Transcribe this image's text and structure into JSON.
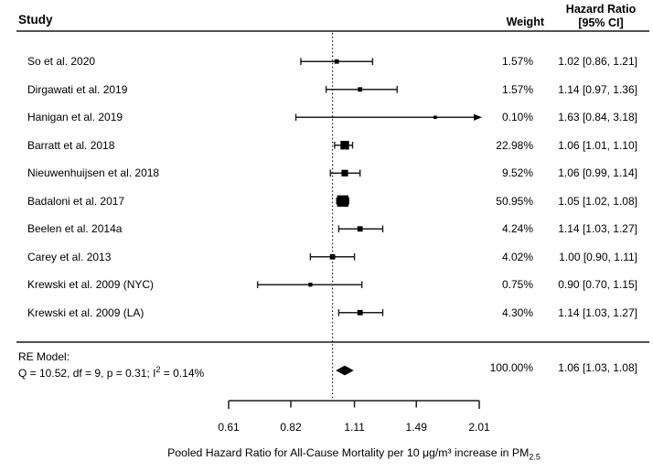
{
  "header": {
    "study": "Study",
    "weight": "Weight",
    "hr_line1": "Hazard Ratio",
    "hr_line2": "[95% CI]"
  },
  "colors": {
    "text": "#000000",
    "marker": "#000000",
    "ci_line": "#1c1c1c",
    "rule_line": "#3a3a3a",
    "background": "#ffffff"
  },
  "chart_data": {
    "type": "scatter",
    "subtype": "forest-plot",
    "x_scale": "log",
    "grid": false,
    "axis": {
      "range": [
        0.61,
        2.01
      ],
      "ticks": [
        0.61,
        0.82,
        1.11,
        1.49,
        2.01
      ],
      "tick_labels": [
        "0.61",
        "0.82",
        "1.11",
        "1.49",
        "2.01"
      ],
      "ref_line": 1.0
    },
    "xlabel_prefix": "Pooled Hazard Ratio for All-Cause Mortality per 10 μg/m³ increase in PM",
    "xlabel_sub": "2.5",
    "studies": [
      {
        "name": "So et al. 2020",
        "weight_label": "1.57%",
        "weight_pct": 1.57,
        "hr_label": "1.02 [0.86, 1.21]",
        "est": 1.02,
        "lo": 0.86,
        "hi": 1.21,
        "clipped": false
      },
      {
        "name": "Dirgawati et al. 2019",
        "weight_label": "1.57%",
        "weight_pct": 1.57,
        "hr_label": "1.14 [0.97, 1.36]",
        "est": 1.14,
        "lo": 0.97,
        "hi": 1.36,
        "clipped": false
      },
      {
        "name": "Hanigan et al. 2019",
        "weight_label": "0.10%",
        "weight_pct": 0.1,
        "hr_label": "1.63 [0.84, 3.18]",
        "est": 1.63,
        "lo": 0.84,
        "hi": 3.18,
        "clipped": true
      },
      {
        "name": "Barratt et al. 2018",
        "weight_label": "22.98%",
        "weight_pct": 22.98,
        "hr_label": "1.06 [1.01, 1.10]",
        "est": 1.06,
        "lo": 1.01,
        "hi": 1.1,
        "clipped": false
      },
      {
        "name": "Nieuwenhuijsen et al. 2018",
        "weight_label": "9.52%",
        "weight_pct": 9.52,
        "hr_label": "1.06 [0.99, 1.14]",
        "est": 1.06,
        "lo": 0.99,
        "hi": 1.14,
        "clipped": false
      },
      {
        "name": "Badaloni et al. 2017",
        "weight_label": "50.95%",
        "weight_pct": 50.95,
        "hr_label": "1.05 [1.02, 1.08]",
        "est": 1.05,
        "lo": 1.02,
        "hi": 1.08,
        "clipped": false
      },
      {
        "name": "Beelen et al. 2014a",
        "weight_label": "4.24%",
        "weight_pct": 4.24,
        "hr_label": "1.14 [1.03, 1.27]",
        "est": 1.14,
        "lo": 1.03,
        "hi": 1.27,
        "clipped": false
      },
      {
        "name": "Carey et al. 2013",
        "weight_label": "4.02%",
        "weight_pct": 4.02,
        "hr_label": "1.00 [0.90, 1.11]",
        "est": 1.0,
        "lo": 0.9,
        "hi": 1.11,
        "clipped": false
      },
      {
        "name": "Krewski et al. 2009 (NYC)",
        "weight_label": "0.75%",
        "weight_pct": 0.75,
        "hr_label": "0.90 [0.70, 1.15]",
        "est": 0.9,
        "lo": 0.7,
        "hi": 1.15,
        "clipped": false
      },
      {
        "name": "Krewski et al. 2009 (LA)",
        "weight_label": "4.30%",
        "weight_pct": 4.3,
        "hr_label": "1.14 [1.03, 1.27]",
        "est": 1.14,
        "lo": 1.03,
        "hi": 1.27,
        "clipped": false
      }
    ],
    "summary": {
      "label": "RE Model:",
      "het_prefix": "Q = 10.52, df = 9, p = 0.31; I",
      "het_sup": "2",
      "het_suffix": " = 0.14%",
      "weight_label": "100.00%",
      "hr_label": "1.06 [1.03, 1.08]",
      "est": 1.06,
      "lo": 1.03,
      "hi": 1.08
    }
  }
}
